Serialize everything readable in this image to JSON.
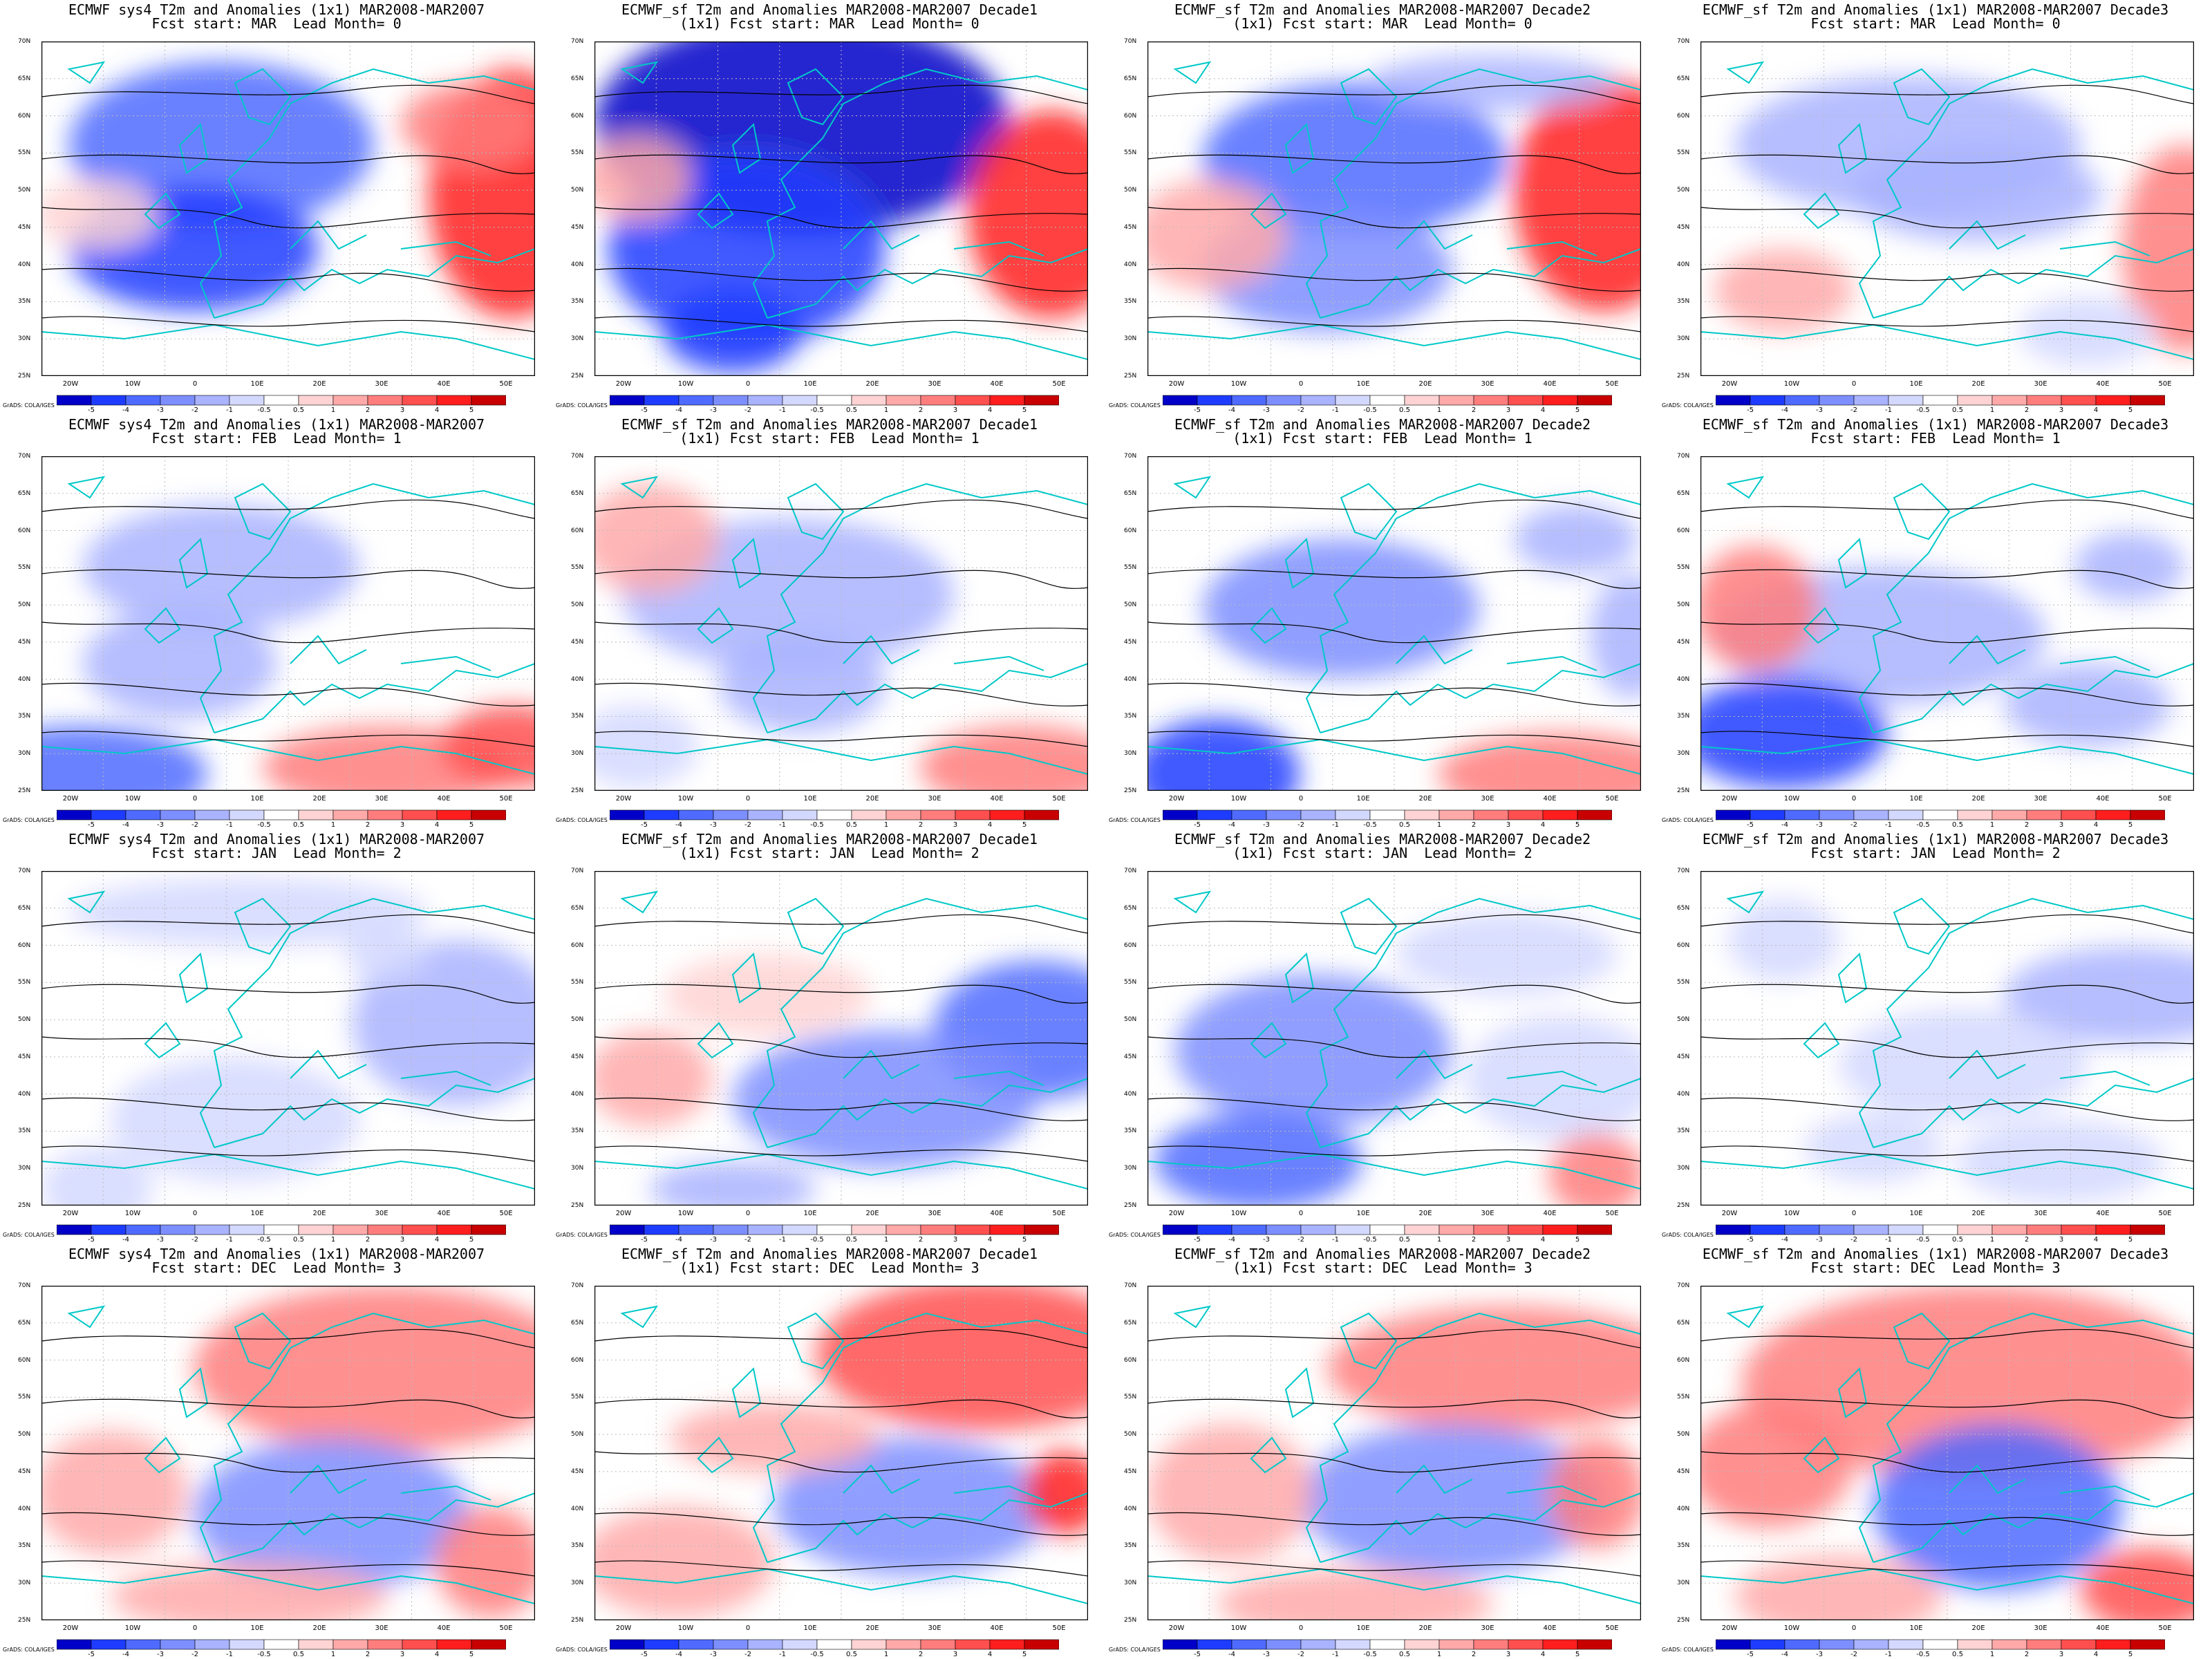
{
  "titles": [
    [
      "ECMWF sys4 T2m and Anomalies (1x1) MAR2008-MAR2007",
      "Fcst start: MAR  Lead Month= 0"
    ],
    [
      "ECMWF_sf T2m and Anomalies MAR2008-MAR2007 Decade1",
      "(1x1) Fcst start: MAR  Lead Month= 0"
    ],
    [
      "ECMWF_sf T2m and Anomalies MAR2008-MAR2007 Decade2",
      "(1x1) Fcst start: MAR  Lead Month= 0"
    ],
    [
      "ECMWF_sf T2m and Anomalies (1x1) MAR2008-MAR2007 Decade3",
      "Fcst start: MAR  Lead Month= 0"
    ],
    [
      "ECMWF sys4 T2m and Anomalies (1x1) MAR2008-MAR2007",
      "Fcst start: FEB  Lead Month= 1"
    ],
    [
      "ECMWF_sf T2m and Anomalies MAR2008-MAR2007 Decade1",
      "(1x1) Fcst start: FEB  Lead Month= 1"
    ],
    [
      "ECMWF_sf T2m and Anomalies MAR2008-MAR2007 Decade2",
      "(1x1) Fcst start: FEB  Lead Month= 1"
    ],
    [
      "ECMWF_sf T2m and Anomalies (1x1) MAR2008-MAR2007 Decade3",
      "Fcst start: FEB  Lead Month= 1"
    ],
    [
      "ECMWF sys4 T2m and Anomalies (1x1) MAR2008-MAR2007",
      "Fcst start: JAN  Lead Month= 2"
    ],
    [
      "ECMWF_sf T2m and Anomalies MAR2008-MAR2007 Decade1",
      "(1x1) Fcst start: JAN  Lead Month= 2"
    ],
    [
      "ECMWF_sf T2m and Anomalies MAR2008-MAR2007 Decade2",
      "(1x1) Fcst start: JAN  Lead Month= 2"
    ],
    [
      "ECMWF_sf T2m and Anomalies (1x1) MAR2008-MAR2007 Decade3",
      "Fcst start: JAN  Lead Month= 2"
    ],
    [
      "ECMWF sys4 T2m and Anomalies (1x1) MAR2008-MAR2007",
      "Fcst start: DEC  Lead Month= 3"
    ],
    [
      "ECMWF_sf T2m and Anomalies MAR2008-MAR2007 Decade1",
      "(1x1) Fcst start: DEC  Lead Month= 3"
    ],
    [
      "ECMWF_sf T2m and Anomalies MAR2008-MAR2007 Decade2",
      "(1x1) Fcst start: DEC  Lead Month= 3"
    ],
    [
      "ECMWF_sf T2m and Anomalies (1x1) MAR2008-MAR2007 Decade3",
      "Fcst start: DEC  Lead Month= 3"
    ]
  ],
  "lon_labels": [
    "20W",
    "10W",
    "0",
    "10E",
    "20E",
    "30E",
    "40E",
    "50E"
  ],
  "lat_labels": [
    "70N",
    "65N",
    "60N",
    "55N",
    "50N",
    "45N",
    "40N",
    "35N",
    "30N",
    "25N"
  ],
  "colorbar": {
    "ticks": [
      "-5",
      "-4",
      "-3",
      "-2",
      "-1",
      "-0.5",
      "0.5",
      "1",
      "2",
      "3",
      "4",
      "5"
    ],
    "colors": [
      "#0000c8",
      "#1e3cff",
      "#4f6bff",
      "#7d8eff",
      "#a9b3ff",
      "#d3d8ff",
      "#ffffff",
      "#ffd3d3",
      "#ffa9a9",
      "#ff7d7d",
      "#ff4f4f",
      "#ff1e1e",
      "#c80000"
    ],
    "credit": "GrADS: COLA/IGES"
  },
  "colors": {
    "contour": "#000000",
    "coastline": "#00c8c8",
    "cold": "#5060ff",
    "warm": "#ff4040"
  }
}
